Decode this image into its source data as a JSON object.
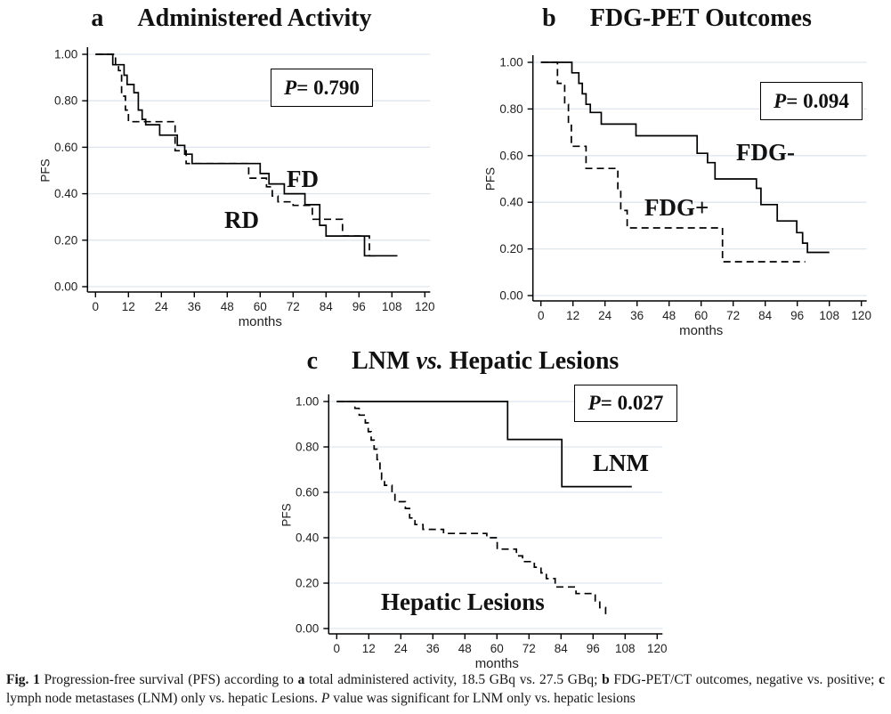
{
  "figure": {
    "caption_segments": [
      {
        "t": "Fig. 1",
        "b": true
      },
      {
        "t": " Progression-free survival (PFS) according to "
      },
      {
        "t": "a",
        "b": true
      },
      {
        "t": " total administered activity, 18.5 GBq vs. 27.5 GBq; "
      },
      {
        "t": "b",
        "b": true
      },
      {
        "t": " FDG-PET/CT outcomes, negative vs. positive; "
      },
      {
        "t": "c",
        "b": true
      },
      {
        "t": " lymph node metastases (LNM) only vs. hepatic Lesions. "
      },
      {
        "t": "P",
        "i": true
      },
      {
        "t": " value was significant for LNM only vs. hepatic lesions"
      }
    ]
  },
  "chart_data": [
    {
      "type": "line",
      "subtype": "kaplan-meier-step",
      "panel_letter": "a",
      "title_pre": "Administered Activity",
      "title_italic": "",
      "title_post": "",
      "p_sym": "P",
      "p_rest": "= 0.790",
      "xlabel": "months",
      "ylabel": "PFS",
      "xlim": [
        0,
        120
      ],
      "ylim": [
        0,
        1
      ],
      "xticks": [
        0,
        12,
        24,
        36,
        48,
        60,
        72,
        84,
        96,
        108,
        120
      ],
      "xtick_labels": [
        "0",
        "12",
        "24",
        "36",
        "48",
        "60",
        "72",
        "84",
        "96",
        "108",
        "120"
      ],
      "yticks": [
        0,
        0.2,
        0.4,
        0.6,
        0.8,
        1
      ],
      "ytick_labels": [
        "0.00",
        "0.20",
        "0.40",
        "0.60",
        "0.80",
        "1.00"
      ],
      "grid": "horizontal",
      "legend_position": "inline-labels",
      "line_color": "#000000",
      "series": [
        {
          "name": "FD",
          "line": "solid",
          "points": [
            [
              0,
              1.0
            ],
            [
              6.3,
              0.955
            ],
            [
              10.4,
              0.91
            ],
            [
              11.5,
              0.87
            ],
            [
              14,
              0.835
            ],
            [
              15.6,
              0.76
            ],
            [
              17,
              0.72
            ],
            [
              18.3,
              0.697
            ],
            [
              23.4,
              0.652
            ],
            [
              29.8,
              0.608
            ],
            [
              32.5,
              0.57
            ],
            [
              35.2,
              0.53
            ],
            [
              60,
              0.487
            ],
            [
              63.2,
              0.442
            ],
            [
              68.8,
              0.4
            ],
            [
              76.3,
              0.353
            ],
            [
              81.7,
              0.264
            ],
            [
              84,
              0.218
            ],
            [
              98,
              0.133
            ]
          ],
          "end_x": 110
        },
        {
          "name": "RD",
          "line": "dashed",
          "points": [
            [
              0,
              1.0
            ],
            [
              7.3,
              0.955
            ],
            [
              8.4,
              0.93
            ],
            [
              9.5,
              0.82
            ],
            [
              10.9,
              0.76
            ],
            [
              12,
              0.71
            ],
            [
              29,
              0.585
            ],
            [
              33,
              0.53
            ],
            [
              55.8,
              0.467
            ],
            [
              62.3,
              0.43
            ],
            [
              64.4,
              0.39
            ],
            [
              66.5,
              0.365
            ],
            [
              72,
              0.35
            ],
            [
              79,
              0.29
            ],
            [
              90,
              0.218
            ],
            [
              99.8,
              0.133
            ]
          ],
          "end_x": 102.5
        }
      ]
    },
    {
      "type": "line",
      "subtype": "kaplan-meier-step",
      "panel_letter": "b",
      "title_pre": "FDG-PET Outcomes",
      "title_italic": "",
      "title_post": "",
      "p_sym": "P",
      "p_rest": "= 0.094",
      "xlabel": "months",
      "ylabel": "PFS",
      "xlim": [
        0,
        120
      ],
      "ylim": [
        0,
        1
      ],
      "xticks": [
        0,
        12,
        24,
        36,
        48,
        60,
        72,
        84,
        96,
        108,
        120
      ],
      "xtick_labels": [
        "0",
        "12",
        "24",
        "36",
        "48",
        "60",
        "72",
        "84",
        "96",
        "108",
        "120"
      ],
      "yticks": [
        0,
        0.2,
        0.4,
        0.6,
        0.8,
        1
      ],
      "ytick_labels": [
        "0.00",
        "0.20",
        "0.40",
        "0.60",
        "0.80",
        "1.00"
      ],
      "grid": "horizontal",
      "legend_position": "inline-labels",
      "line_color": "#000000",
      "series": [
        {
          "name": "FDG-",
          "line": "solid",
          "points": [
            [
              0,
              1.0
            ],
            [
              11.6,
              0.955
            ],
            [
              14.2,
              0.91
            ],
            [
              15.5,
              0.865
            ],
            [
              16.9,
              0.82
            ],
            [
              18.5,
              0.785
            ],
            [
              22.6,
              0.735
            ],
            [
              35.6,
              0.685
            ],
            [
              58.5,
              0.61
            ],
            [
              62.4,
              0.57
            ],
            [
              65.2,
              0.5
            ],
            [
              80.7,
              0.46
            ],
            [
              82.4,
              0.39
            ],
            [
              88.5,
              0.32
            ],
            [
              95.8,
              0.27
            ],
            [
              98,
              0.225
            ],
            [
              99.8,
              0.185
            ]
          ],
          "end_x": 108
        },
        {
          "name": "FDG+",
          "line": "dashed",
          "points": [
            [
              0,
              1.0
            ],
            [
              6.2,
              0.91
            ],
            [
              8.9,
              0.82
            ],
            [
              10.3,
              0.73
            ],
            [
              11.4,
              0.64
            ],
            [
              16.9,
              0.545
            ],
            [
              28.8,
              0.455
            ],
            [
              29.9,
              0.365
            ],
            [
              32.3,
              0.29
            ],
            [
              68,
              0.145
            ]
          ],
          "end_x": 99
        }
      ]
    },
    {
      "type": "line",
      "subtype": "kaplan-meier-step",
      "panel_letter": "c",
      "title_pre": "LNM ",
      "title_italic": "vs.",
      "title_post": " Hepatic Lesions",
      "p_sym": "P",
      "p_rest": "= 0.027",
      "xlabel": "months",
      "ylabel": "PFS",
      "xlim": [
        0,
        120
      ],
      "ylim": [
        0,
        1
      ],
      "xticks": [
        0,
        12,
        24,
        36,
        48,
        60,
        72,
        84,
        96,
        108,
        120
      ],
      "xtick_labels": [
        "0",
        "12",
        "24",
        "36",
        "48",
        "60",
        "72",
        "84",
        "96",
        "108",
        "120"
      ],
      "yticks": [
        0,
        0.2,
        0.4,
        0.6,
        0.8,
        1
      ],
      "ytick_labels": [
        "0.00",
        "0.20",
        "0.40",
        "0.60",
        "0.80",
        "1.00"
      ],
      "grid": "horizontal",
      "legend_position": "inline-labels",
      "line_color": "#000000",
      "series": [
        {
          "name": "LNM",
          "line": "solid",
          "points": [
            [
              0,
              1.0
            ],
            [
              64,
              0.833
            ],
            [
              84.3,
              0.625
            ]
          ],
          "end_x": 110.5
        },
        {
          "name": "Hepatic Lesions",
          "line": "dashed",
          "points": [
            [
              0,
              1.0
            ],
            [
              6.8,
              0.97
            ],
            [
              8.4,
              0.94
            ],
            [
              10.7,
              0.906
            ],
            [
              11.8,
              0.867
            ],
            [
              12.9,
              0.83
            ],
            [
              14,
              0.79
            ],
            [
              15.1,
              0.744
            ],
            [
              16.2,
              0.7
            ],
            [
              16.8,
              0.657
            ],
            [
              17.9,
              0.631
            ],
            [
              20.7,
              0.6
            ],
            [
              21.8,
              0.559
            ],
            [
              25.7,
              0.529
            ],
            [
              27.3,
              0.487
            ],
            [
              29.3,
              0.458
            ],
            [
              32.3,
              0.437
            ],
            [
              40,
              0.419
            ],
            [
              56.2,
              0.4
            ],
            [
              60.1,
              0.35
            ],
            [
              67.3,
              0.32
            ],
            [
              69.6,
              0.295
            ],
            [
              74,
              0.27
            ],
            [
              76.5,
              0.245
            ],
            [
              78.5,
              0.22
            ],
            [
              81.8,
              0.183
            ],
            [
              89.6,
              0.154
            ],
            [
              96.8,
              0.122
            ],
            [
              98.5,
              0.092
            ],
            [
              100.7,
              0.063
            ]
          ],
          "end_x": 102.3
        }
      ]
    }
  ]
}
